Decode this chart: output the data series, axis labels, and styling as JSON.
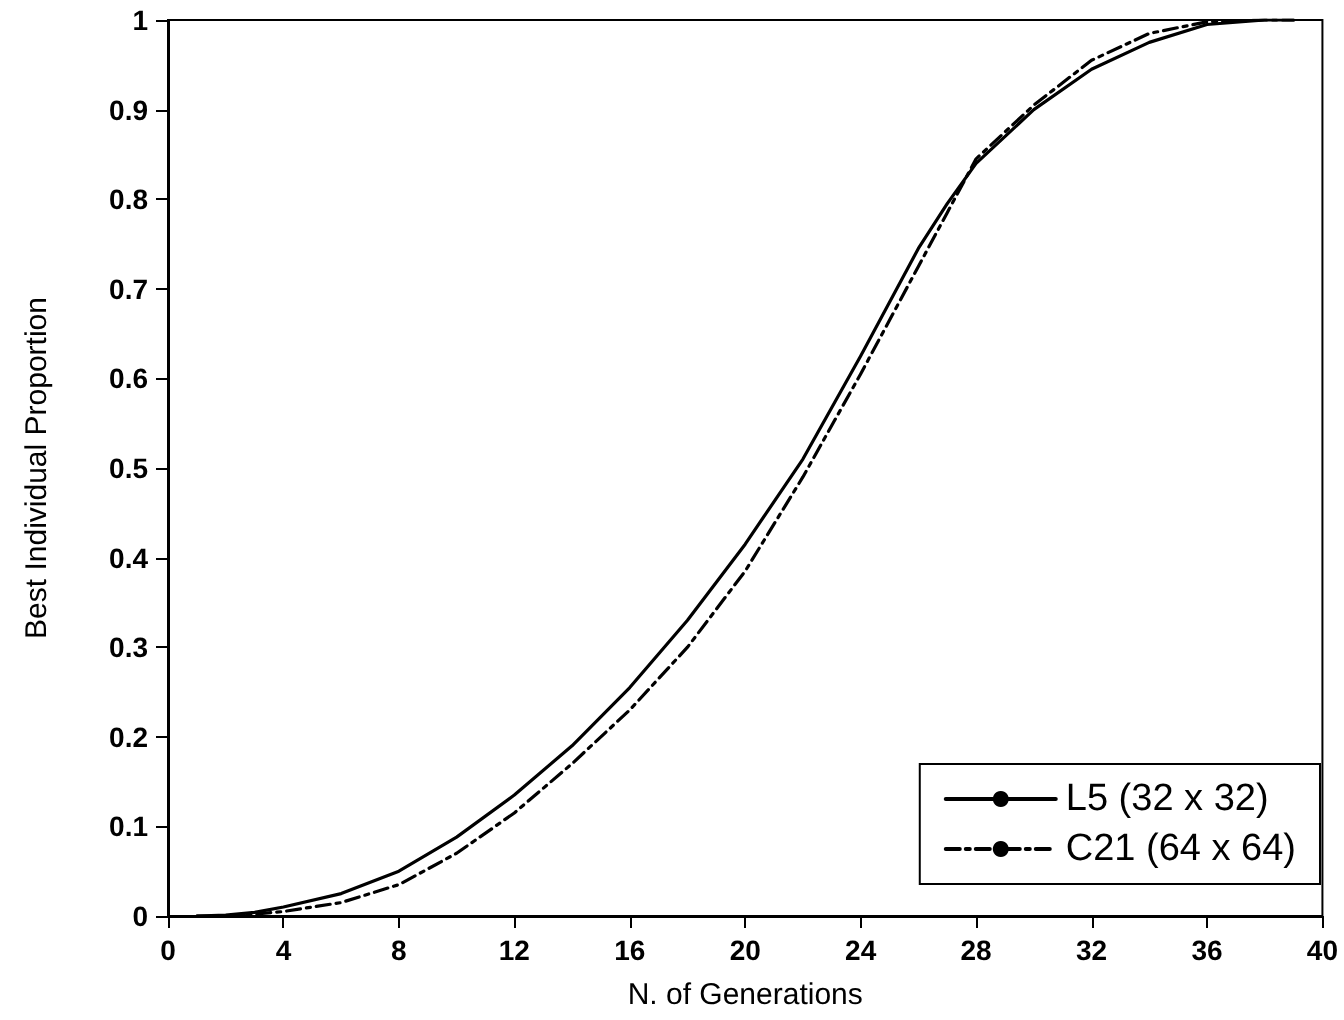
{
  "chart_data": {
    "type": "line",
    "xlabel": "N. of Generations",
    "ylabel": "Best Individual Proportion",
    "xlim": [
      0,
      40
    ],
    "xticks": [
      0,
      4,
      8,
      12,
      16,
      20,
      24,
      28,
      32,
      36,
      40
    ],
    "ylim": [
      0,
      1
    ],
    "yticks": [
      0,
      0.1,
      0.2,
      0.3,
      0.4,
      0.5,
      0.6,
      0.7,
      0.8,
      0.9,
      1
    ],
    "grid": false,
    "legend": "bottom right",
    "marker": "none",
    "series": [
      {
        "name": "L5 (32 x 32)",
        "color": "#000000",
        "line_style": "solid",
        "x": [
          1,
          2,
          3,
          4,
          6,
          8,
          10,
          12,
          14,
          16,
          18,
          20,
          22,
          24,
          26,
          27,
          28,
          30,
          32,
          34,
          36,
          38,
          39
        ],
        "values": [
          0,
          0.001,
          0.004,
          0.01,
          0.025,
          0.05,
          0.088,
          0.135,
          0.19,
          0.255,
          0.33,
          0.415,
          0.51,
          0.625,
          0.745,
          0.795,
          0.84,
          0.9,
          0.945,
          0.975,
          0.995,
          1,
          1
        ]
      },
      {
        "name": "C21 (64 x 64)",
        "color": "#000000",
        "line_style": "dashed",
        "x": [
          1,
          2,
          3,
          4,
          6,
          8,
          10,
          12,
          14,
          16,
          18,
          20,
          22,
          24,
          26,
          27,
          28,
          30,
          32,
          34,
          36,
          38,
          39
        ],
        "values": [
          0,
          0,
          0.002,
          0.005,
          0.015,
          0.035,
          0.07,
          0.115,
          0.17,
          0.23,
          0.3,
          0.385,
          0.49,
          0.605,
          0.725,
          0.785,
          0.845,
          0.905,
          0.955,
          0.985,
          0.998,
          1,
          1
        ]
      }
    ]
  }
}
